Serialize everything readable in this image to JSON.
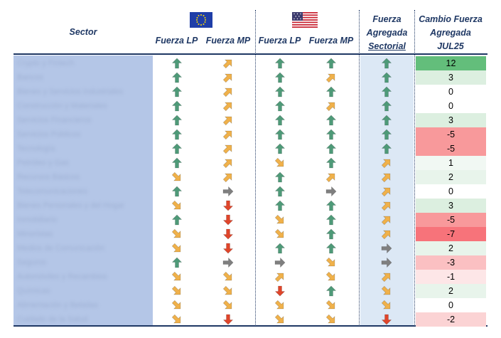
{
  "header": {
    "sector": "Sector",
    "eu_lp": "Fuerza LP",
    "eu_mp": "Fuerza MP",
    "us_lp": "Fuerza LP",
    "us_mp": "Fuerza MP",
    "agg_line1": "Fuerza",
    "agg_line2": "Agregada",
    "agg_line3": "Sectorial",
    "chg_line1": "Cambio Fuerza",
    "chg_line2": "Agregada",
    "chg_line3": "JUL25"
  },
  "flags": {
    "eu": "flag-eu-icon",
    "us": "flag-us-icon"
  },
  "icon_colors": {
    "up": "#4e9a78",
    "ur": "#f0b14a",
    "right": "#7f7f7f",
    "dr": "#f0b14a",
    "down": "#e0452a"
  },
  "rows": [
    {
      "sector": "Crypto y Fintech",
      "eu_lp": "up",
      "eu_mp": "ur",
      "us_lp": "up",
      "us_mp": "up",
      "agg": "up",
      "change": "12",
      "color": "#63be7b"
    },
    {
      "sector": "Bancos",
      "eu_lp": "up",
      "eu_mp": "ur",
      "us_lp": "up",
      "us_mp": "ur",
      "agg": "up",
      "change": "3",
      "color": "#dcefe0"
    },
    {
      "sector": "Bienes y Servicios Industriales",
      "eu_lp": "up",
      "eu_mp": "ur",
      "us_lp": "up",
      "us_mp": "up",
      "agg": "up",
      "change": "0",
      "color": "#ffffff"
    },
    {
      "sector": "Construcción y Materiales",
      "eu_lp": "up",
      "eu_mp": "ur",
      "us_lp": "up",
      "us_mp": "ur",
      "agg": "up",
      "change": "0",
      "color": "#ffffff"
    },
    {
      "sector": "Servicios Financieros",
      "eu_lp": "up",
      "eu_mp": "ur",
      "us_lp": "up",
      "us_mp": "up",
      "agg": "up",
      "change": "3",
      "color": "#dcefe0"
    },
    {
      "sector": "Servicios Públicos",
      "eu_lp": "up",
      "eu_mp": "ur",
      "us_lp": "up",
      "us_mp": "up",
      "agg": "up",
      "change": "-5",
      "color": "#f8999b"
    },
    {
      "sector": "Tecnología",
      "eu_lp": "up",
      "eu_mp": "ur",
      "us_lp": "up",
      "us_mp": "up",
      "agg": "up",
      "change": "-5",
      "color": "#f8999b"
    },
    {
      "sector": "Petróleo y Gas",
      "eu_lp": "up",
      "eu_mp": "ur",
      "us_lp": "dr",
      "us_mp": "up",
      "agg": "ur",
      "change": "1",
      "color": "#f1f8f3"
    },
    {
      "sector": "Recursos Básicos",
      "eu_lp": "dr",
      "eu_mp": "ur",
      "us_lp": "up",
      "us_mp": "ur",
      "agg": "ur",
      "change": "2",
      "color": "#e8f4eb"
    },
    {
      "sector": "Telecomunicaciones",
      "eu_lp": "up",
      "eu_mp": "right",
      "us_lp": "up",
      "us_mp": "right",
      "agg": "ur",
      "change": "0",
      "color": "#ffffff"
    },
    {
      "sector": "Bienes Personales y del Hogar",
      "eu_lp": "dr",
      "eu_mp": "down",
      "us_lp": "up",
      "us_mp": "up",
      "agg": "ur",
      "change": "3",
      "color": "#dcefe0"
    },
    {
      "sector": "Inmobiliario",
      "eu_lp": "up",
      "eu_mp": "down",
      "us_lp": "dr",
      "us_mp": "up",
      "agg": "ur",
      "change": "-5",
      "color": "#f8999b"
    },
    {
      "sector": "Minoristas",
      "eu_lp": "dr",
      "eu_mp": "down",
      "us_lp": "dr",
      "us_mp": "up",
      "agg": "ur",
      "change": "-7",
      "color": "#f7737a"
    },
    {
      "sector": "Medios de Comunicación",
      "eu_lp": "dr",
      "eu_mp": "down",
      "us_lp": "up",
      "us_mp": "up",
      "agg": "right",
      "change": "2",
      "color": "#e8f4eb"
    },
    {
      "sector": "Seguros",
      "eu_lp": "up",
      "eu_mp": "right",
      "us_lp": "right",
      "us_mp": "dr",
      "agg": "right",
      "change": "-3",
      "color": "#fbc0c2"
    },
    {
      "sector": "Automóviles y Recambios",
      "eu_lp": "dr",
      "eu_mp": "dr",
      "us_lp": "ur",
      "us_mp": "dr",
      "agg": "ur",
      "change": "-1",
      "color": "#fde6e7"
    },
    {
      "sector": "Químicas",
      "eu_lp": "dr",
      "eu_mp": "dr",
      "us_lp": "down",
      "us_mp": "up",
      "agg": "dr",
      "change": "2",
      "color": "#e8f4eb"
    },
    {
      "sector": "Alimentación y Bebidas",
      "eu_lp": "dr",
      "eu_mp": "dr",
      "us_lp": "dr",
      "us_mp": "dr",
      "agg": "dr",
      "change": "0",
      "color": "#ffffff"
    },
    {
      "sector": "Cuidado de la Salud",
      "eu_lp": "dr",
      "eu_mp": "down",
      "us_lp": "dr",
      "us_mp": "dr",
      "agg": "down",
      "change": "-2",
      "color": "#fbd3d4"
    }
  ]
}
